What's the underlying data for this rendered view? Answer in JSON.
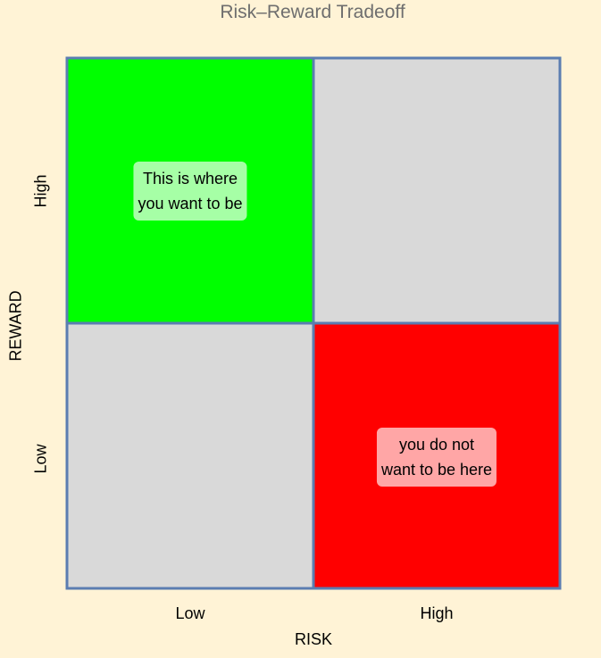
{
  "chart_data": {
    "type": "heatmap",
    "title": "Risk–Reward Tradeoff",
    "xlabel": "RISK",
    "ylabel": "REWARD",
    "x_categories": [
      "Low",
      "High"
    ],
    "y_categories": [
      "Low",
      "High"
    ],
    "cells": [
      {
        "risk": "Low",
        "reward": "High",
        "color": "#00FF00",
        "label": [
          "This is where",
          "you want to be"
        ],
        "label_bg": "#A6FFA6"
      },
      {
        "risk": "High",
        "reward": "High",
        "color": "#D9D9D9"
      },
      {
        "risk": "Low",
        "reward": "Low",
        "color": "#D9D9D9"
      },
      {
        "risk": "High",
        "reward": "Low",
        "color": "#FF0000",
        "label": [
          "you do not",
          "want to be here"
        ],
        "label_bg": "#FFA6A6"
      }
    ],
    "border_color": "#5B7DB1",
    "grid": false
  },
  "colors": {
    "background": "#FFF3D6",
    "title": "#6E6E6E"
  }
}
